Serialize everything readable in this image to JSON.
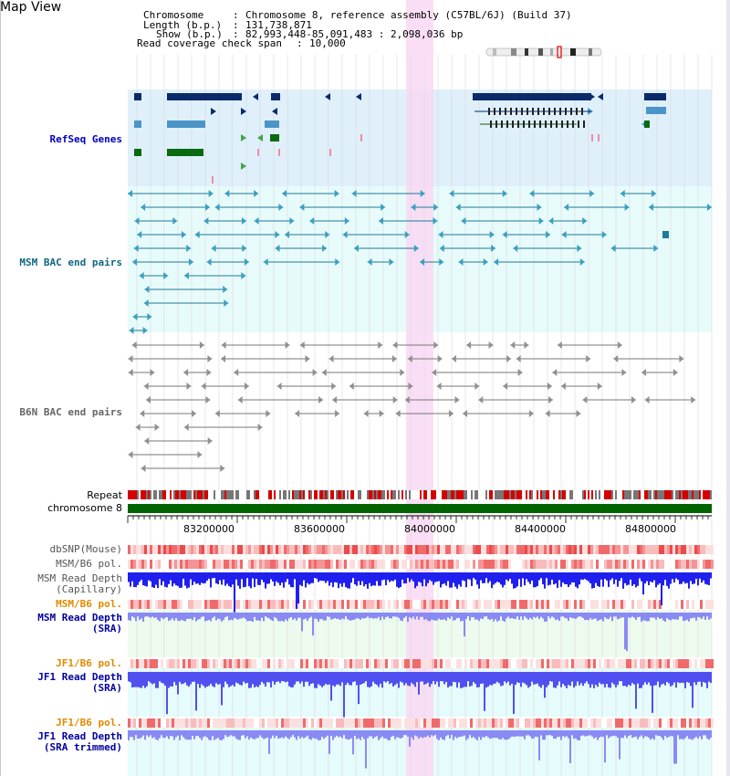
{
  "app_title": "Map View",
  "header": {
    "chromosome_key": "Chromosome",
    "chromosome_value": "Chromosome 8, reference assembly (C57BL/6J) (Build 37)",
    "length_key": "Length (b.p.)",
    "length_value": "131,738,871",
    "show_key": "Show (b.p.)",
    "show_value": "82,993,448-85,091,483 : 2,098,036 bp",
    "coverage_key": "Read coverage check span",
    "coverage_value": "10,000"
  },
  "tracks": {
    "refseq": "RefSeq Genes",
    "msm_bac": "MSM BAC end pairs",
    "b6n_bac": "B6N BAC end pairs",
    "repeat": "Repeat",
    "chromosome": "chromosome 8",
    "dbsnp": "dbSNP(Mouse)",
    "msm_b6_pol": "MSM/B6 pol.",
    "msm_depth_cap_1": "MSM Read Depth",
    "msm_depth_cap_2": "(Capillary)",
    "msm_b6_pol_sra": "MSM/B6 pol.",
    "msm_depth_sra_1": "MSM Read Depth",
    "msm_depth_sra_2": "(SRA)",
    "jf1_b6_pol": "JF1/B6 pol.",
    "jf1_depth_sra_1": "JF1 Read Depth",
    "jf1_depth_sra_2": "(SRA)",
    "jf1_b6_pol_trim": "JF1/B6 pol.",
    "jf1_depth_trim_1": "JF1 Read Depth",
    "jf1_depth_trim_2": "(SRA trimmed)"
  },
  "axis_ticks": [
    "83200000",
    "83600000",
    "84000000",
    "84400000",
    "84800000"
  ],
  "colors": {
    "refseq_bg": "#dff0fb",
    "msm_bg": "#e8fbfb",
    "highlight": "#f9d8f3",
    "msm_label": "#116680",
    "refseq_label": "#0000c0",
    "b6n_label": "#666666",
    "pol_label_orange": "#e08a00",
    "depth_label_blue": "#0000a0",
    "chrom_bar": "#006400"
  }
}
